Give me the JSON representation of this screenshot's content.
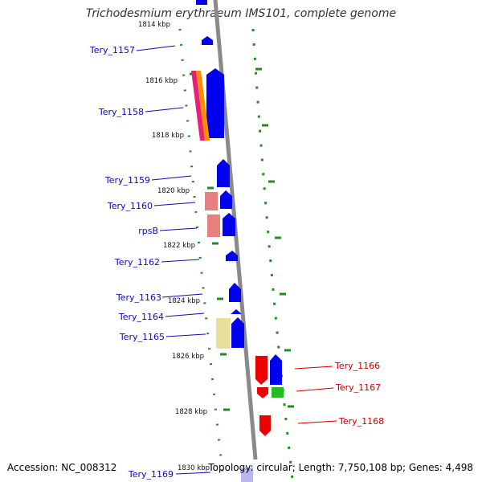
{
  "title": "Trichodesmium erythraeum IMS101, complete genome",
  "footer": {
    "accession": "Accession: NC_008312",
    "summary": "Topology: circular; Length: 7,750,108 bp; Genes: 4,498"
  },
  "kbp_labels": [
    "1814 kbp",
    "1816 kbp",
    "1818 kbp",
    "1820 kbp",
    "1822 kbp",
    "1824 kbp",
    "1826 kbp",
    "1828 kbp",
    "1830 kbp"
  ],
  "gene_labels": [
    "Tery_1157",
    "Tery_1158",
    "Tery_1159",
    "Tery_1160",
    "rpsB",
    "Tery_1162",
    "Tery_1163",
    "Tery_1164",
    "Tery_1165",
    "Tery_1166",
    "Tery_1167",
    "Tery_1168",
    "Tery_1169"
  ],
  "colors": {
    "forward_gene": "#0000ee",
    "reverse_gene": "#ee0000",
    "label_blue": "#0b0bb8",
    "label_red": "#cc0000",
    "backbone": "#888888",
    "ticks": "#228b22"
  }
}
